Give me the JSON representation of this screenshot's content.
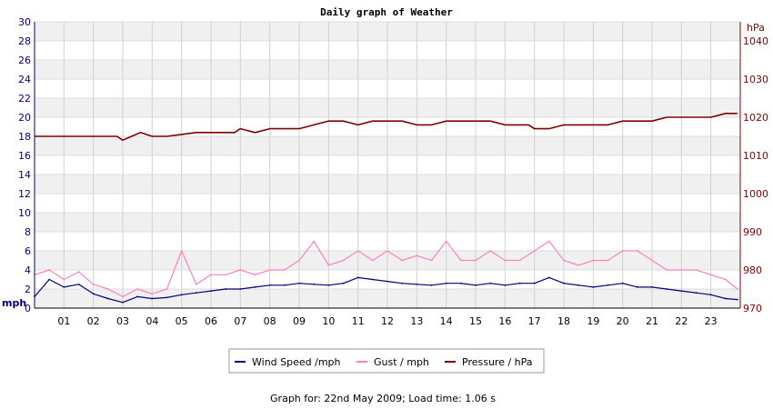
{
  "chart_data": {
    "type": "line",
    "title": "Daily graph of Weather",
    "left_axis": {
      "unit_label": "mph",
      "ylim": [
        0,
        30
      ],
      "ticks": [
        "0",
        "2",
        "4",
        "6",
        "8",
        "10",
        "12",
        "14",
        "16",
        "18",
        "20",
        "22",
        "24",
        "26",
        "28",
        "30"
      ],
      "color": "#000080"
    },
    "right_axis": {
      "unit_label": "hPa",
      "ylim": [
        970,
        1045
      ],
      "ticks": [
        "970",
        "980",
        "990",
        "1000",
        "1010",
        "1020",
        "1030",
        "1040"
      ],
      "color": "#800000"
    },
    "x_ticks": [
      "01",
      "02",
      "03",
      "04",
      "05",
      "06",
      "07",
      "08",
      "09",
      "10",
      "11",
      "12",
      "13",
      "14",
      "15",
      "16",
      "17",
      "18",
      "19",
      "20",
      "21",
      "22",
      "23"
    ],
    "xlim": [
      0,
      24
    ],
    "grid": true,
    "legend_position": "bottom-center",
    "series": [
      {
        "name": "Wind Speed /mph",
        "axis": "left",
        "color": "#000080",
        "x": [
          0,
          0.5,
          1,
          1.5,
          2,
          2.5,
          3,
          3.5,
          4,
          4.5,
          5,
          5.5,
          6,
          6.5,
          7,
          7.5,
          8,
          8.5,
          9,
          9.5,
          10,
          10.5,
          11,
          11.5,
          12,
          12.5,
          13,
          13.5,
          14,
          14.5,
          15,
          15.5,
          16,
          16.5,
          17,
          17.5,
          18,
          18.5,
          19,
          19.5,
          20,
          20.5,
          21,
          21.5,
          22,
          22.5,
          23,
          23.5,
          23.9
        ],
        "values": [
          1.2,
          3.0,
          2.2,
          2.5,
          1.5,
          1.0,
          0.6,
          1.2,
          1.0,
          1.1,
          1.4,
          1.6,
          1.8,
          2.0,
          2.0,
          2.2,
          2.4,
          2.4,
          2.6,
          2.5,
          2.4,
          2.6,
          3.2,
          3.0,
          2.8,
          2.6,
          2.5,
          2.4,
          2.6,
          2.6,
          2.4,
          2.6,
          2.4,
          2.6,
          2.6,
          3.2,
          2.6,
          2.4,
          2.2,
          2.4,
          2.6,
          2.2,
          2.2,
          2.0,
          1.8,
          1.6,
          1.4,
          1.0,
          0.9
        ]
      },
      {
        "name": "Gust / mph",
        "axis": "left",
        "color": "#ff80c0",
        "x": [
          0,
          0.5,
          1,
          1.5,
          2,
          2.5,
          3,
          3.5,
          4,
          4.5,
          5,
          5.5,
          6,
          6.5,
          7,
          7.5,
          8,
          8.5,
          9,
          9.5,
          10,
          10.5,
          11,
          11.5,
          12,
          12.5,
          13,
          13.5,
          14,
          14.5,
          15,
          15.5,
          16,
          16.5,
          17,
          17.5,
          18,
          18.5,
          19,
          19.5,
          20,
          20.5,
          21,
          21.5,
          22,
          22.5,
          23,
          23.5,
          23.9
        ],
        "values": [
          3.5,
          4.0,
          3.0,
          3.8,
          2.5,
          2.0,
          1.2,
          2.0,
          1.5,
          2.0,
          6.0,
          2.5,
          3.5,
          3.5,
          4.0,
          3.5,
          4.0,
          4.0,
          5.0,
          7.0,
          4.5,
          5.0,
          6.0,
          5.0,
          6.0,
          5.0,
          5.5,
          5.0,
          7.0,
          5.0,
          5.0,
          6.0,
          5.0,
          5.0,
          6.0,
          7.0,
          5.0,
          4.5,
          5.0,
          5.0,
          6.0,
          6.0,
          5.0,
          4.0,
          4.0,
          4.0,
          3.5,
          3.0,
          2.0
        ]
      },
      {
        "name": "Pressure / hPa",
        "axis": "right",
        "color": "#800000",
        "x": [
          0,
          1,
          2,
          2.8,
          3.0,
          3.3,
          3.6,
          4.0,
          4.5,
          5.0,
          5.5,
          6.0,
          6.8,
          7.0,
          7.5,
          8.0,
          9.0,
          9.5,
          10.0,
          10.5,
          11.0,
          11.5,
          12.0,
          12.5,
          13.0,
          13.5,
          14.0,
          15.0,
          15.5,
          16.0,
          16.8,
          17.0,
          17.5,
          18.0,
          18.8,
          19.0,
          19.5,
          20.0,
          21.0,
          21.5,
          22.0,
          23.0,
          23.5,
          23.9
        ],
        "values": [
          1015,
          1015,
          1015,
          1015,
          1014,
          1015,
          1016,
          1015,
          1015,
          1015.5,
          1016,
          1016,
          1016,
          1017,
          1016,
          1017,
          1017,
          1018,
          1019,
          1019,
          1018,
          1019,
          1019,
          1019,
          1018,
          1018,
          1019,
          1019,
          1019,
          1018,
          1018,
          1017,
          1017,
          1018,
          1018,
          1018,
          1018,
          1019,
          1019,
          1020,
          1020,
          1020,
          1021,
          1021
        ]
      }
    ]
  },
  "footer": {
    "graph_for": "Graph for: 22nd May 2009; Load time: 1.06 s"
  }
}
